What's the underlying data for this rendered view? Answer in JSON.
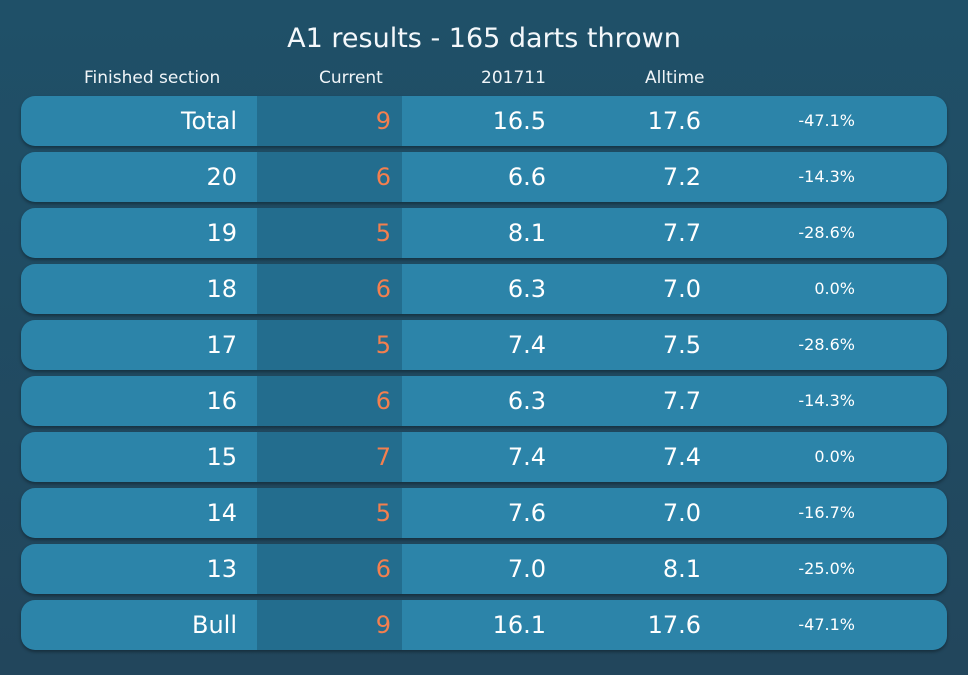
{
  "title": "A1 results - 165 darts thrown",
  "headers": {
    "section": "Finished section",
    "current": "Current",
    "month": "201711",
    "alltime": "Alltime"
  },
  "colors": {
    "background": "#22465c",
    "row": "#2c84a9",
    "current_band": "#236d8e",
    "current_text": "#f47f4e",
    "text": "#ffffff"
  },
  "rows": [
    {
      "label": "Total",
      "current": "9",
      "month": "16.5",
      "alltime": "17.6",
      "change": "-47.1%"
    },
    {
      "label": "20",
      "current": "6",
      "month": "6.6",
      "alltime": "7.2",
      "change": "-14.3%"
    },
    {
      "label": "19",
      "current": "5",
      "month": "8.1",
      "alltime": "7.7",
      "change": "-28.6%"
    },
    {
      "label": "18",
      "current": "6",
      "month": "6.3",
      "alltime": "7.0",
      "change": "0.0%"
    },
    {
      "label": "17",
      "current": "5",
      "month": "7.4",
      "alltime": "7.5",
      "change": "-28.6%"
    },
    {
      "label": "16",
      "current": "6",
      "month": "6.3",
      "alltime": "7.7",
      "change": "-14.3%"
    },
    {
      "label": "15",
      "current": "7",
      "month": "7.4",
      "alltime": "7.4",
      "change": "0.0%"
    },
    {
      "label": "14",
      "current": "5",
      "month": "7.6",
      "alltime": "7.0",
      "change": "-16.7%"
    },
    {
      "label": "13",
      "current": "6",
      "month": "7.0",
      "alltime": "8.1",
      "change": "-25.0%"
    },
    {
      "label": "Bull",
      "current": "9",
      "month": "16.1",
      "alltime": "17.6",
      "change": "-47.1%"
    }
  ]
}
